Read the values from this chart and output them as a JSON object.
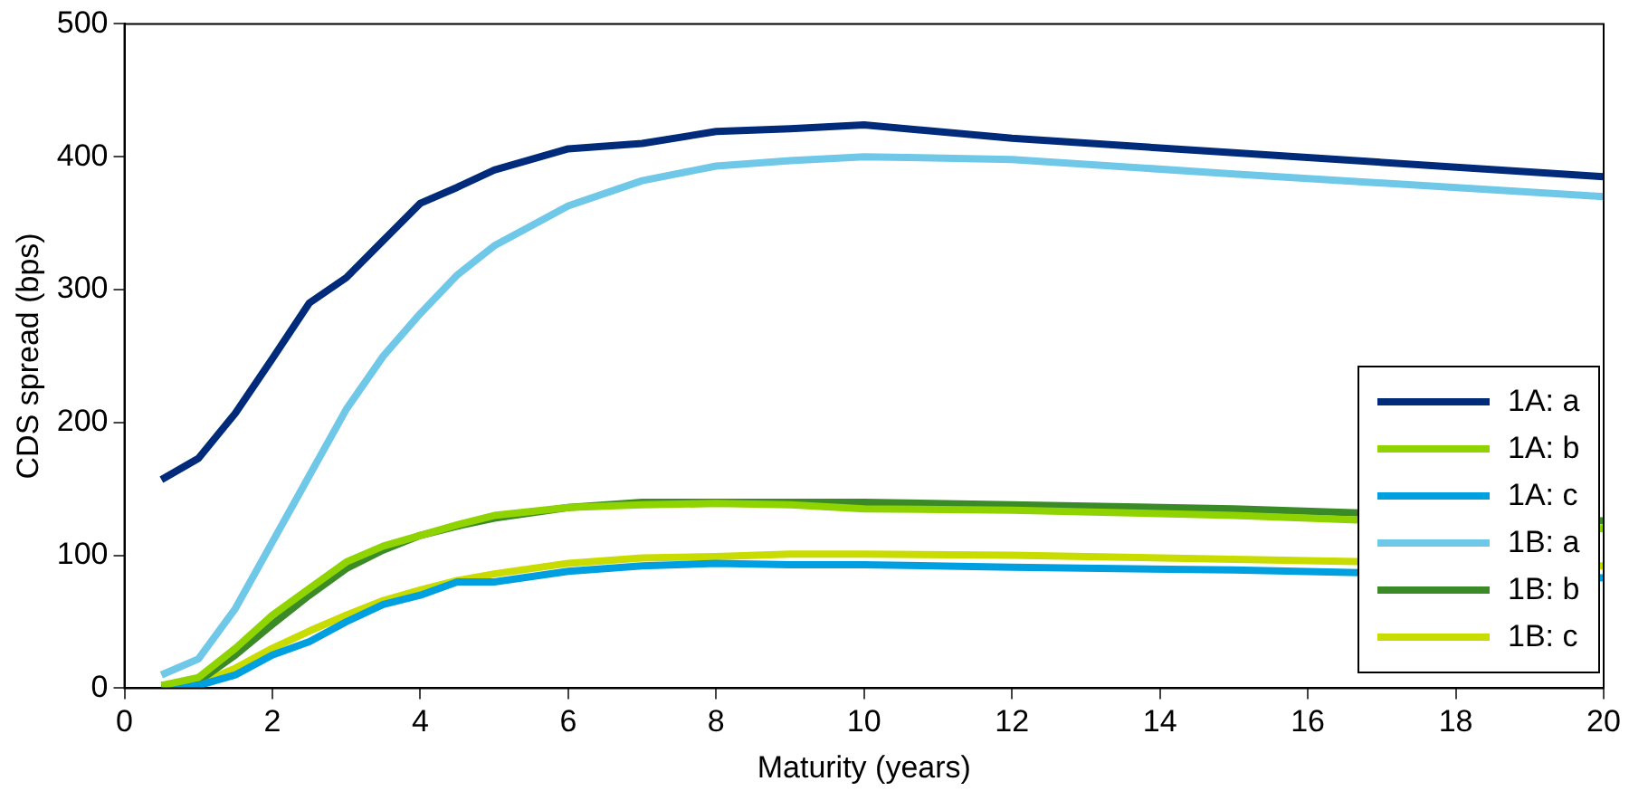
{
  "chart_data": {
    "type": "line",
    "xlabel": "Maturity (years)",
    "ylabel": "CDS spread (bps)",
    "x": [
      0.5,
      1,
      1.5,
      2,
      2.5,
      3,
      3.5,
      4,
      4.5,
      5,
      6,
      7,
      8,
      9,
      10,
      12,
      15,
      20
    ],
    "xlim": [
      0,
      20
    ],
    "xticks": [
      0,
      2,
      4,
      6,
      8,
      10,
      12,
      14,
      16,
      18,
      20
    ],
    "ylim": [
      0,
      500
    ],
    "yticks": [
      0,
      100,
      200,
      300,
      400,
      500
    ],
    "grid": false,
    "legend": "bottom right",
    "marker": "none",
    "line_style": "solid",
    "series": [
      {
        "name": "1A: a",
        "color": "#002a7a",
        "values": [
          157,
          173,
          207,
          248,
          290,
          309,
          337,
          365,
          377,
          390,
          406,
          410,
          419,
          421,
          424,
          414,
          403,
          385
        ]
      },
      {
        "name": "1A: b",
        "color": "#8fd400",
        "values": [
          2,
          8,
          30,
          55,
          75,
          95,
          107,
          115,
          123,
          130,
          136,
          138,
          139,
          138,
          135,
          134,
          130,
          120
        ]
      },
      {
        "name": "1A: c",
        "color": "#00a0e0",
        "values": [
          0,
          2,
          10,
          25,
          35,
          50,
          63,
          70,
          80,
          80,
          88,
          92,
          94,
          93,
          93,
          91,
          89,
          83
        ]
      },
      {
        "name": "1B: a",
        "color": "#70c8e8",
        "values": [
          10,
          22,
          60,
          110,
          160,
          210,
          250,
          282,
          311,
          333,
          363,
          382,
          393,
          397,
          400,
          398,
          387,
          370
        ]
      },
      {
        "name": "1B: b",
        "color": "#3a8a28",
        "values": [
          2,
          5,
          25,
          48,
          70,
          90,
          104,
          115,
          122,
          128,
          136,
          140,
          140,
          140,
          140,
          138,
          135,
          126
        ]
      },
      {
        "name": "1B: c",
        "color": "#c8dc00",
        "values": [
          0,
          3,
          15,
          30,
          43,
          55,
          66,
          74,
          81,
          86,
          94,
          98,
          99,
          101,
          101,
          100,
          97,
          92
        ]
      }
    ]
  }
}
